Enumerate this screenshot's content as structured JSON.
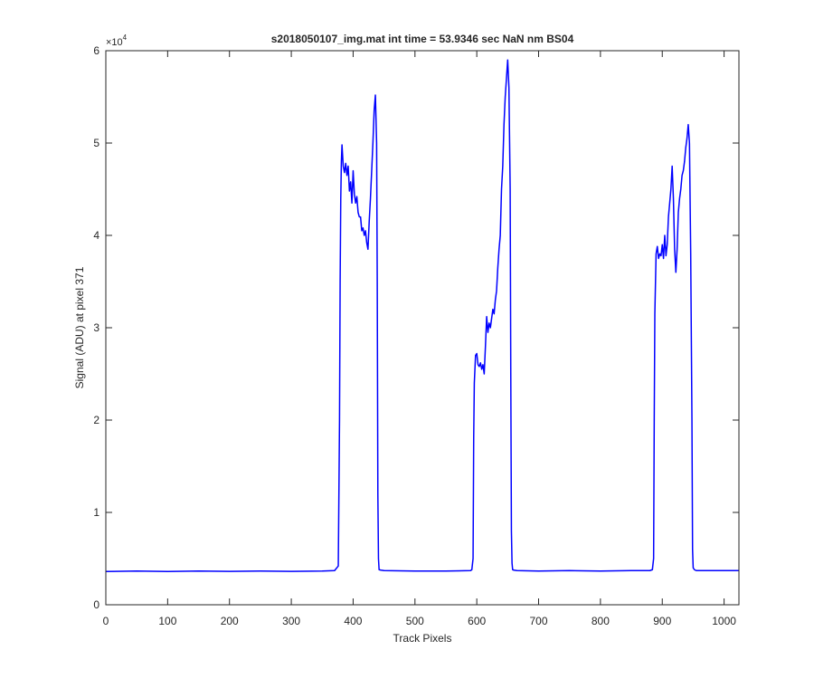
{
  "chart_data": {
    "type": "line",
    "title": "s2018050107_img.mat int time = 53.9346 sec  NaN nm BS04",
    "xlabel": "Track Pixels",
    "ylabel": "Signal (ADU) at pixel 371",
    "xlim": [
      0,
      1024
    ],
    "ylim": [
      0,
      60000
    ],
    "x_ticks": [
      0,
      100,
      200,
      300,
      400,
      500,
      600,
      700,
      800,
      900,
      1000
    ],
    "x_tick_labels": [
      "0",
      "100",
      "200",
      "300",
      "400",
      "500",
      "600",
      "700",
      "800",
      "900",
      "1000"
    ],
    "y_ticks": [
      0,
      10000,
      20000,
      30000,
      40000,
      50000,
      60000
    ],
    "y_tick_labels": [
      "0",
      "1",
      "2",
      "3",
      "4",
      "5",
      "6"
    ],
    "y_exponent": {
      "base": "×10",
      "power": "4"
    },
    "grid": false,
    "legend": "none",
    "colors": {
      "line": "#0000ff",
      "axes": "#262626"
    },
    "series": [
      {
        "x": [
          0,
          50,
          100,
          150,
          200,
          250,
          300,
          350,
          370,
          376,
          378,
          379,
          380,
          381,
          382,
          384,
          386,
          388,
          390,
          392,
          394,
          396,
          398,
          400,
          402,
          404,
          406,
          408,
          410,
          412,
          414,
          416,
          418,
          420,
          422,
          424,
          426,
          428,
          430,
          432,
          434,
          436,
          438,
          439,
          440,
          441,
          442,
          445,
          450,
          500,
          550,
          590,
          592,
          594,
          595,
          596,
          598,
          600,
          602,
          604,
          606,
          608,
          610,
          612,
          614,
          616,
          618,
          620,
          622,
          624,
          626,
          628,
          630,
          632,
          634,
          636,
          638,
          640,
          642,
          644,
          646,
          648,
          650,
          652,
          654,
          655,
          656,
          657,
          658,
          660,
          665,
          700,
          750,
          800,
          850,
          880,
          884,
          886,
          887,
          888,
          890,
          892,
          894,
          896,
          898,
          900,
          902,
          904,
          906,
          908,
          910,
          912,
          914,
          916,
          918,
          920,
          922,
          924,
          926,
          928,
          930,
          932,
          934,
          936,
          938,
          940,
          942,
          944,
          946,
          948,
          949,
          950,
          952,
          955,
          1000,
          1024
        ],
        "y": [
          3600,
          3650,
          3600,
          3650,
          3620,
          3650,
          3620,
          3650,
          3700,
          4200,
          20000,
          35000,
          44000,
          48000,
          49800,
          47500,
          46800,
          47800,
          46500,
          47500,
          44800,
          45800,
          43500,
          47000,
          44500,
          43500,
          44200,
          42500,
          42000,
          42000,
          40500,
          40800,
          40000,
          40500,
          39200,
          38500,
          41500,
          44000,
          47000,
          50000,
          53500,
          55200,
          50000,
          35000,
          12000,
          5000,
          3800,
          3750,
          3700,
          3650,
          3650,
          3700,
          3800,
          5000,
          18000,
          24000,
          27000,
          27200,
          26000,
          25800,
          26200,
          25500,
          26000,
          25000,
          28000,
          31200,
          29500,
          30500,
          30000,
          31000,
          32000,
          31500,
          33000,
          34000,
          36500,
          38500,
          40000,
          45000,
          47500,
          52000,
          55000,
          57000,
          59000,
          56000,
          45000,
          25000,
          8000,
          4500,
          3800,
          3750,
          3700,
          3650,
          3700,
          3650,
          3700,
          3700,
          3800,
          5000,
          20000,
          31500,
          38000,
          38800,
          37500,
          38000,
          37800,
          39000,
          37500,
          40000,
          37800,
          39000,
          42000,
          43500,
          45000,
          47500,
          44000,
          38500,
          36000,
          38500,
          42500,
          44000,
          45000,
          46500,
          47000,
          48000,
          49500,
          50500,
          52000,
          50000,
          38000,
          20000,
          6000,
          4000,
          3800,
          3700,
          3700,
          3700
        ]
      }
    ]
  }
}
